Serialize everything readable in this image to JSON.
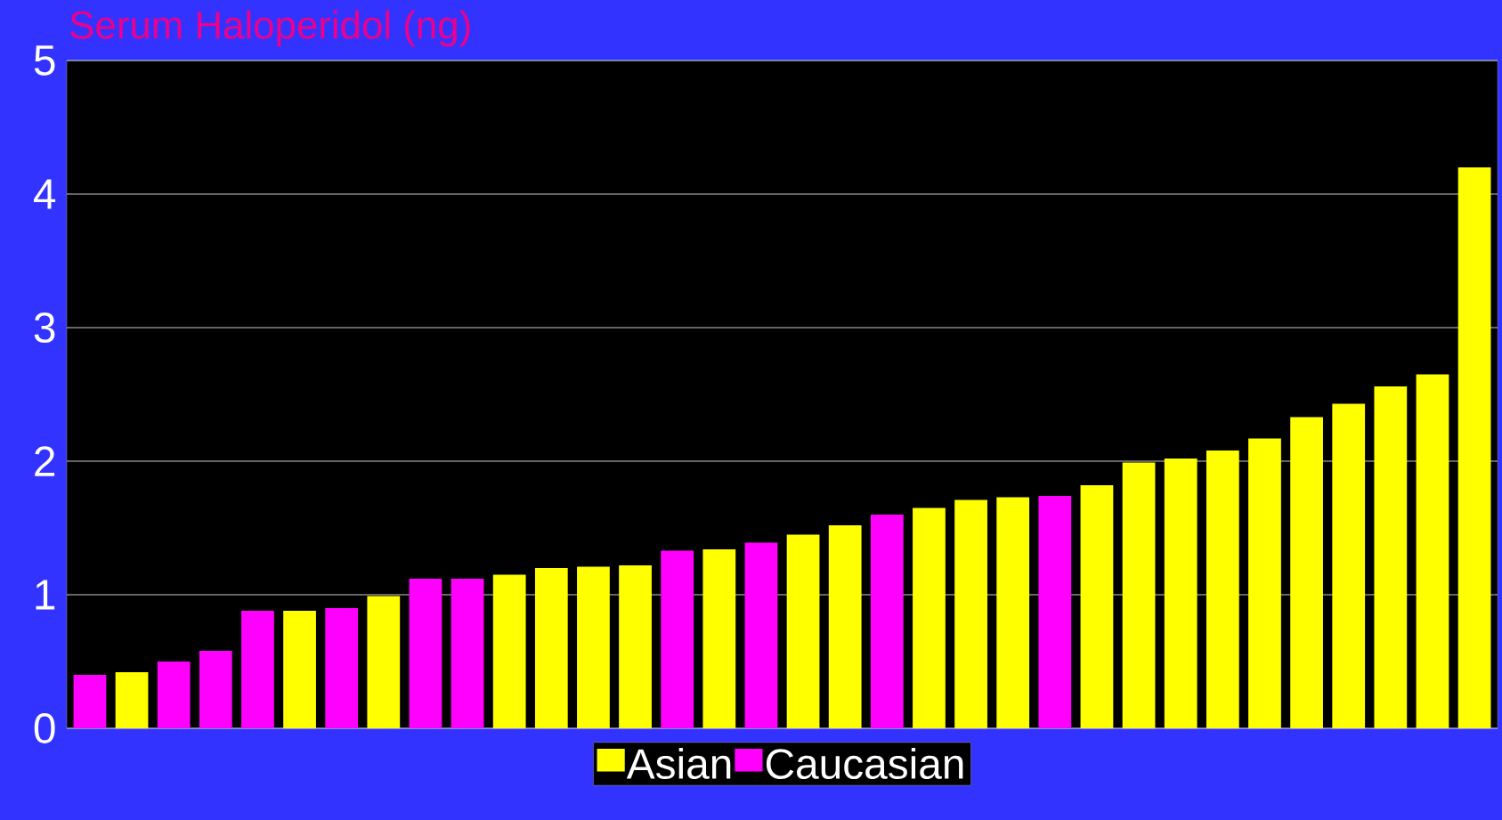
{
  "chart_data": {
    "type": "bar",
    "title": "Serum Haloperidol (ng)",
    "categories": [
      null,
      null,
      null,
      null,
      null,
      null,
      null,
      null,
      null,
      null,
      null,
      null,
      null,
      null,
      null,
      null,
      null,
      null,
      null,
      null,
      null,
      null,
      null,
      null,
      null,
      null,
      null,
      null,
      null,
      null,
      null,
      null,
      null,
      null
    ],
    "series": [
      {
        "name": "Asian",
        "color": "#ffff00",
        "values": [
          null,
          0.42,
          null,
          null,
          null,
          0.88,
          null,
          0.99,
          null,
          null,
          1.15,
          1.2,
          1.21,
          1.22,
          null,
          1.34,
          null,
          1.45,
          1.52,
          null,
          1.65,
          1.71,
          1.73,
          null,
          1.82,
          1.99,
          2.02,
          2.08,
          2.17,
          2.33,
          2.43,
          2.56,
          2.65,
          4.2
        ]
      },
      {
        "name": "Caucasian",
        "color": "#ff00ff",
        "values": [
          0.4,
          null,
          0.5,
          0.58,
          0.88,
          null,
          0.9,
          null,
          1.12,
          1.12,
          null,
          null,
          null,
          null,
          1.33,
          null,
          1.39,
          null,
          null,
          1.6,
          null,
          null,
          null,
          1.74,
          null,
          null,
          null,
          null,
          null,
          null,
          null,
          null,
          null,
          null
        ]
      }
    ],
    "ylim": [
      0,
      5
    ],
    "yticks": [
      0,
      1,
      2,
      3,
      4,
      5
    ],
    "grid": "y",
    "legend": "bottom",
    "tick_labels": "y"
  }
}
